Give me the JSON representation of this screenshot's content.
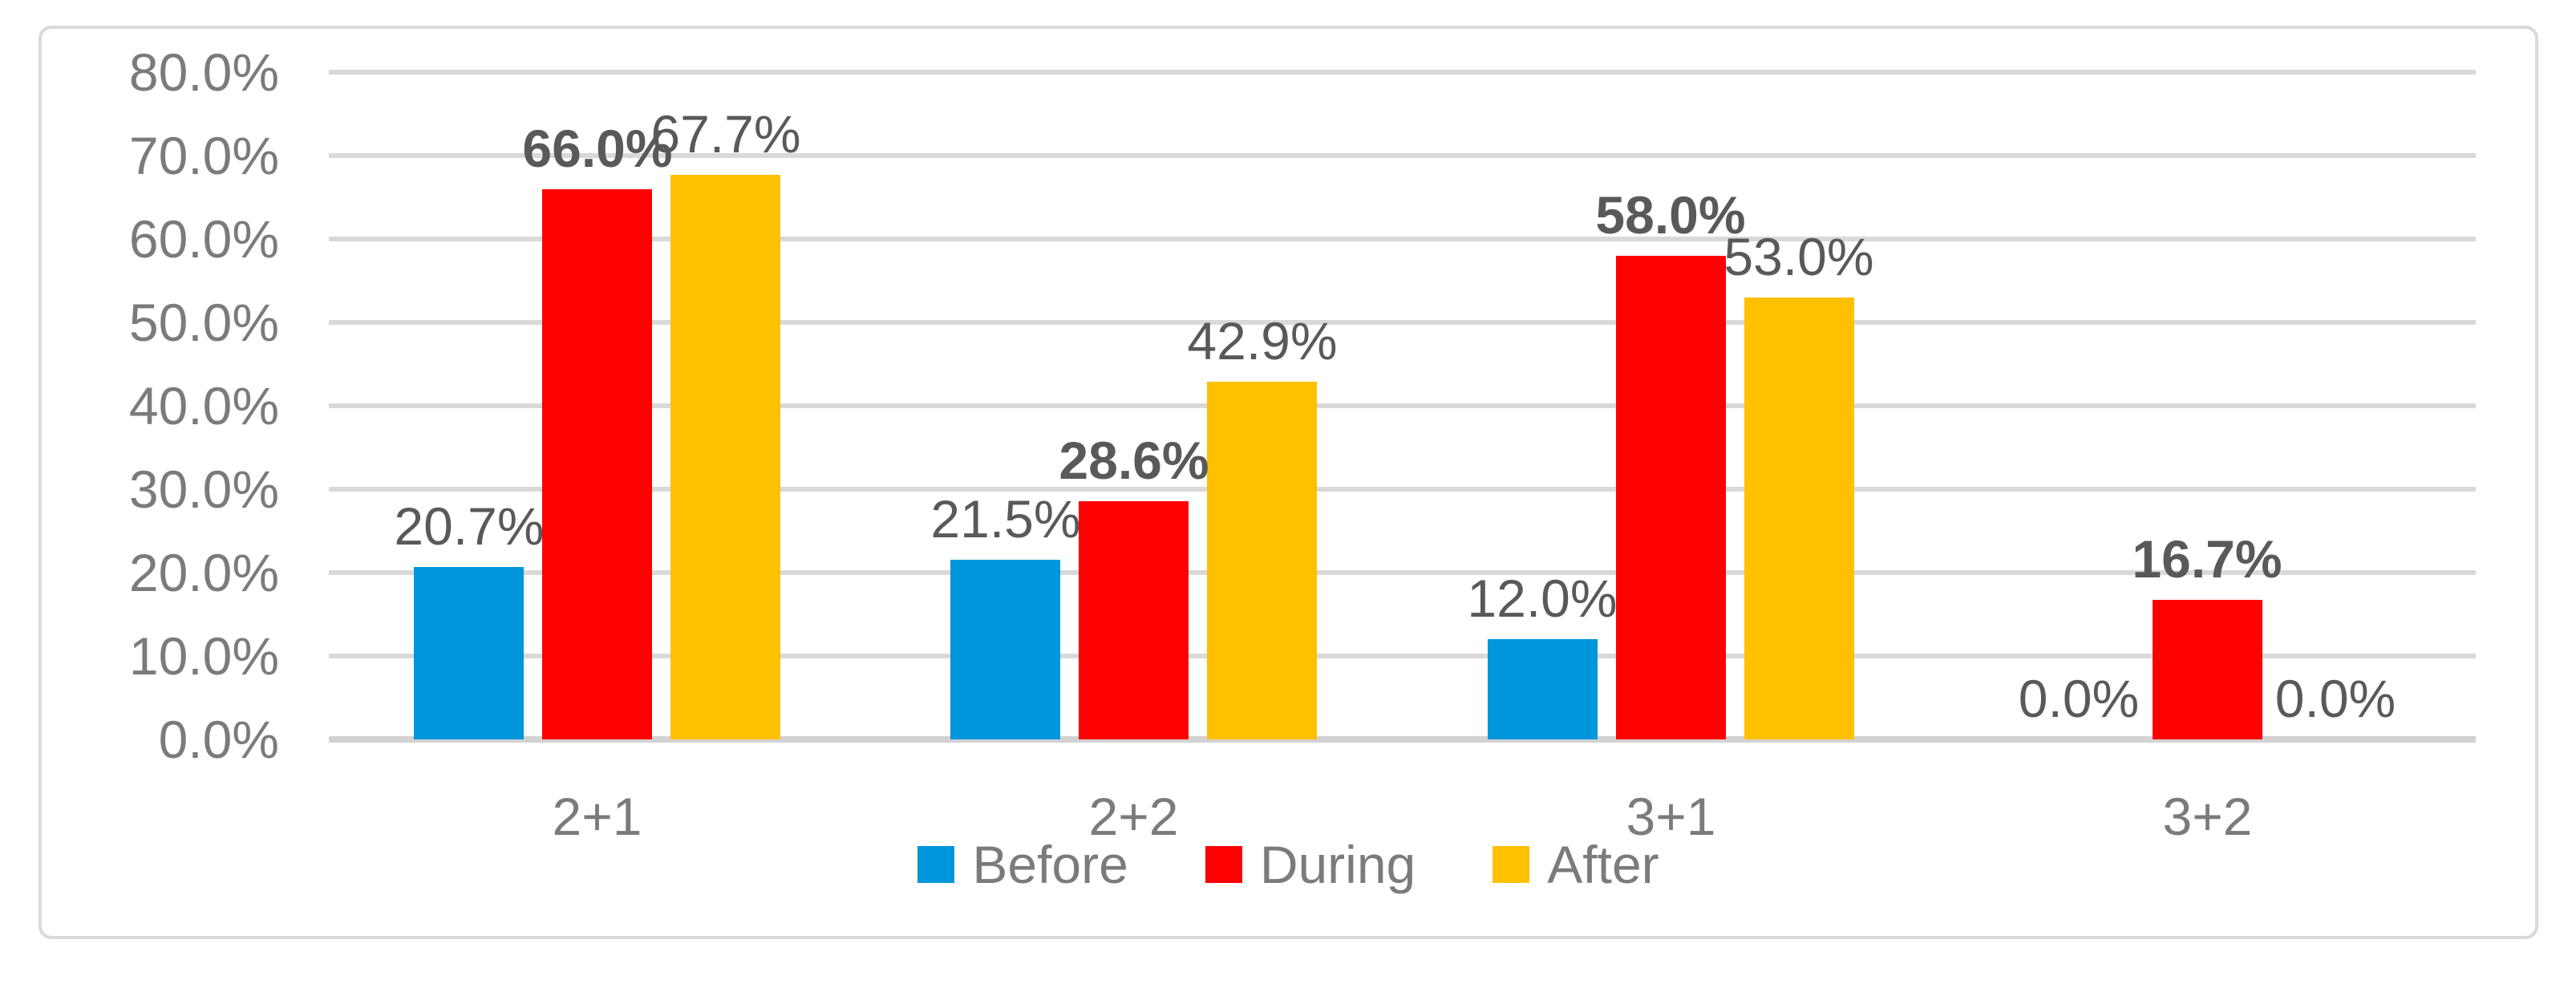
{
  "chart_data": {
    "type": "bar",
    "categories": [
      "2+1",
      "2+2",
      "3+1",
      "3+2"
    ],
    "series": [
      {
        "name": "Before",
        "color": "#0096DB",
        "values": [
          20.7,
          21.5,
          12.0,
          0.0
        ],
        "data_labels": [
          "20.7%",
          "21.5%",
          "12.0%",
          "0.0%"
        ],
        "labels_bold": false
      },
      {
        "name": "During",
        "color": "#FF0000",
        "values": [
          66.0,
          28.6,
          58.0,
          16.7
        ],
        "data_labels": [
          "66.0%",
          "28.6%",
          "58.0%",
          "16.7%"
        ],
        "labels_bold": true
      },
      {
        "name": "After",
        "color": "#FFC000",
        "values": [
          67.7,
          42.9,
          53.0,
          0.0
        ],
        "data_labels": [
          "67.7%",
          "42.9%",
          "53.0%",
          "0.0%"
        ],
        "labels_bold": false
      }
    ],
    "y_axis": {
      "min": 0,
      "max": 80,
      "step": 10,
      "tick_labels": [
        "80.0%",
        "70.0%",
        "60.0%",
        "50.0%",
        "40.0%",
        "30.0%",
        "20.0%",
        "10.0%",
        "0.0%"
      ]
    },
    "grid": true,
    "legend_position": "bottom"
  },
  "colors": {
    "background": "#FFFFFF",
    "frame_border": "#D9D9D9",
    "gridline": "#D9D9D9",
    "axis_line": "#D2D2D2",
    "tick_text": "#7B7B7B",
    "category_text": "#7B7B7B",
    "legend_text": "#7B7B7B",
    "data_label_text": "#595959"
  }
}
